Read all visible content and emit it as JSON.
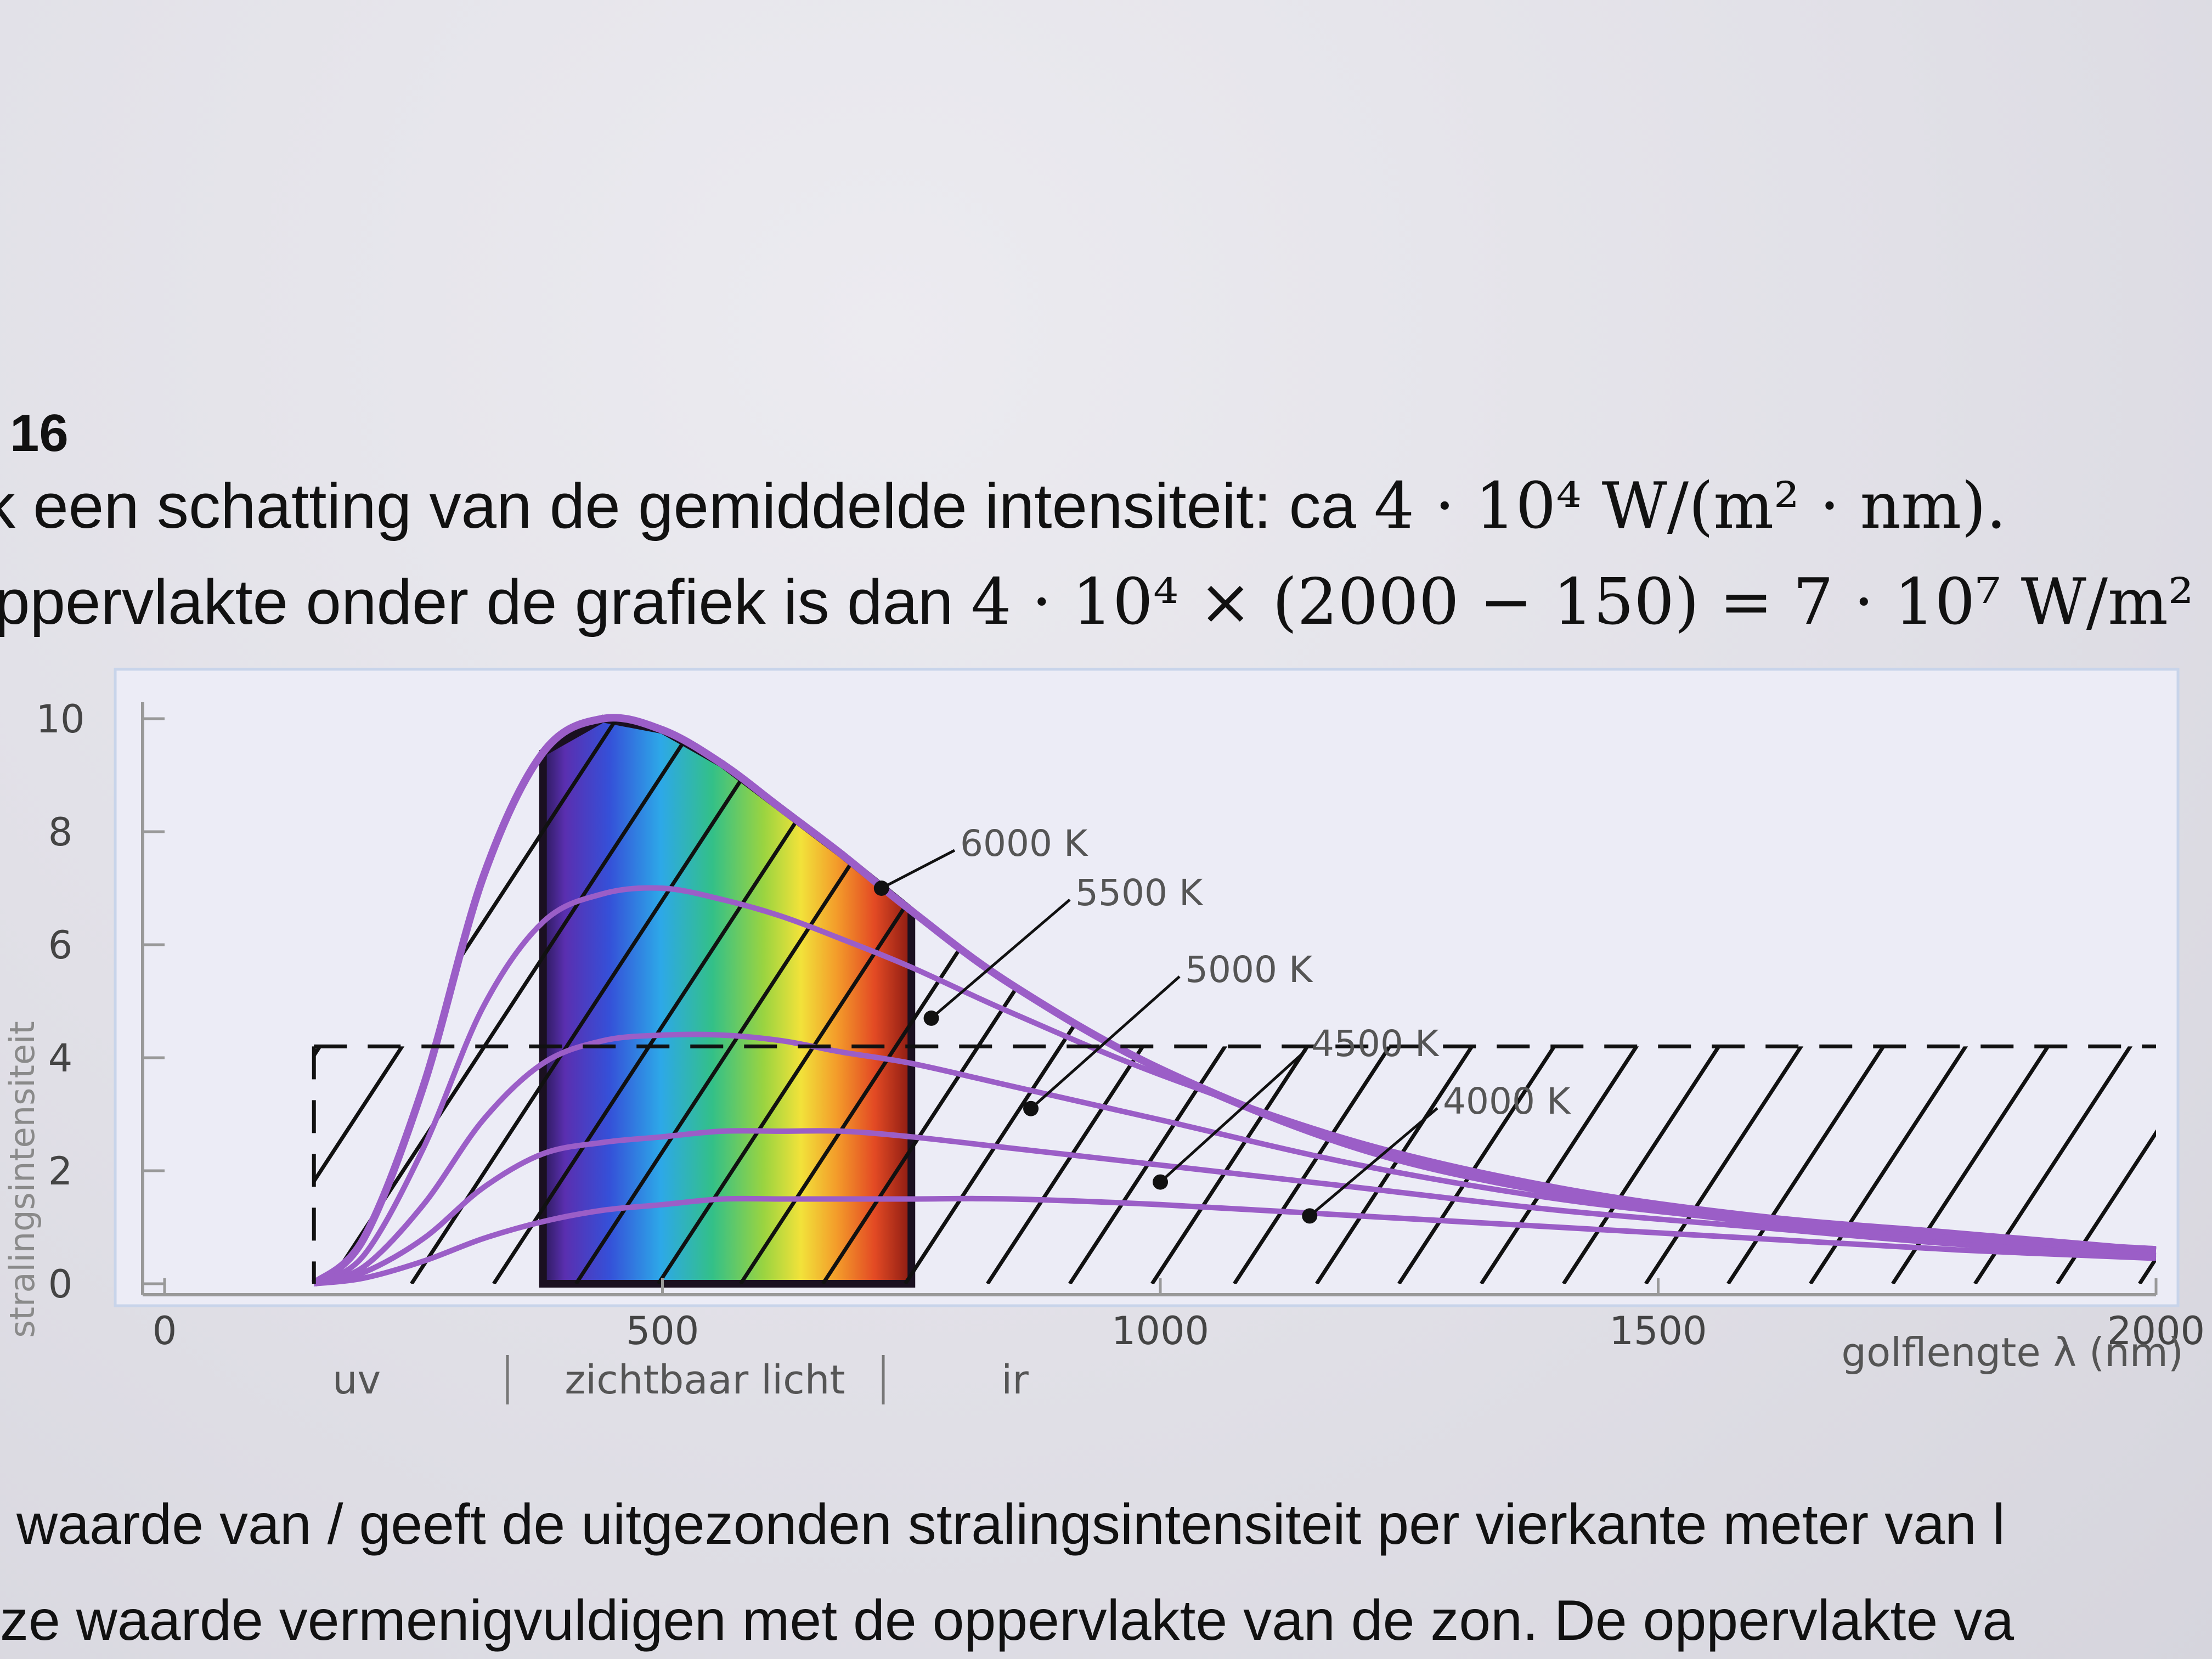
{
  "question_number": "16",
  "text": {
    "line1_prefix": "k een schatting van de gemiddelde intensiteit: ca",
    "line1_math": "4 · 10⁴ W/(m² · nm).",
    "line2_prefix": "ppervlakte onder de grafiek is dan",
    "line2_math": "4 · 10⁴ × (2000 − 150) = 7 · 10⁷ W/m²",
    "bottom_line1": "waarde van / geeft de uitgezonden stralingsintensiteit per vierkante meter van l",
    "bottom_line2": "ze waarde vermenigvuldigen met de oppervlakte van de zon. De oppervlakte va"
  },
  "chart_data": {
    "type": "line",
    "xlabel": "golflengte λ (nm)",
    "ylabel": "stralingsintensiteit",
    "xlim": [
      0,
      2000
    ],
    "ylim": [
      0,
      10
    ],
    "x_ticks": [
      "0",
      "500",
      "1000",
      "1500",
      "2000"
    ],
    "y_ticks": [
      "0",
      "2",
      "4",
      "6",
      "8",
      "10"
    ],
    "region_labels": [
      "uv",
      "zichtbaar licht",
      "ir"
    ],
    "visible_band_nm": [
      380,
      750
    ],
    "average_line": {
      "value": 4.2,
      "x_start": 150,
      "x_end": 2000
    },
    "series": [
      {
        "name": "6000 K",
        "x": [
          150,
          200,
          260,
          320,
          380,
          440,
          500,
          560,
          620,
          680,
          750,
          850,
          1000,
          1200,
          1400,
          1600,
          1800,
          2000
        ],
        "y": [
          0,
          0.8,
          3.5,
          7.2,
          9.4,
          10.0,
          9.8,
          9.2,
          8.4,
          7.6,
          6.6,
          5.3,
          3.8,
          2.4,
          1.6,
          1.1,
          0.8,
          0.6
        ]
      },
      {
        "name": "5500 K",
        "x": [
          150,
          200,
          260,
          320,
          380,
          440,
          500,
          560,
          620,
          680,
          750,
          850,
          1000,
          1200,
          1400,
          1600,
          1800,
          2000
        ],
        "y": [
          0,
          0.5,
          2.4,
          4.9,
          6.4,
          6.9,
          7.0,
          6.8,
          6.5,
          6.1,
          5.6,
          4.8,
          3.7,
          2.5,
          1.7,
          1.2,
          0.9,
          0.6
        ]
      },
      {
        "name": "5000 K",
        "x": [
          150,
          200,
          260,
          320,
          380,
          440,
          500,
          560,
          620,
          680,
          750,
          850,
          1000,
          1200,
          1400,
          1600,
          1800,
          2000
        ],
        "y": [
          0,
          0.3,
          1.4,
          2.9,
          3.9,
          4.3,
          4.4,
          4.4,
          4.3,
          4.1,
          3.9,
          3.5,
          2.9,
          2.1,
          1.5,
          1.1,
          0.8,
          0.6
        ]
      },
      {
        "name": "4500 K",
        "x": [
          150,
          200,
          260,
          320,
          380,
          440,
          500,
          560,
          620,
          680,
          750,
          850,
          1000,
          1200,
          1400,
          1600,
          1800,
          2000
        ],
        "y": [
          0,
          0.2,
          0.8,
          1.7,
          2.3,
          2.5,
          2.6,
          2.7,
          2.7,
          2.7,
          2.6,
          2.4,
          2.1,
          1.7,
          1.3,
          1.0,
          0.7,
          0.5
        ]
      },
      {
        "name": "4000 K",
        "x": [
          150,
          200,
          260,
          320,
          380,
          440,
          500,
          560,
          620,
          680,
          750,
          850,
          1000,
          1200,
          1400,
          1600,
          1800,
          2000
        ],
        "y": [
          0,
          0.1,
          0.4,
          0.8,
          1.1,
          1.3,
          1.4,
          1.5,
          1.5,
          1.5,
          1.5,
          1.5,
          1.4,
          1.2,
          1.0,
          0.8,
          0.6,
          0.45
        ]
      }
    ],
    "label_markers": [
      {
        "series": "6000 K",
        "x": 720,
        "y": 7.0
      },
      {
        "series": "5500 K",
        "x": 770,
        "y": 4.7
      },
      {
        "series": "5000 K",
        "x": 870,
        "y": 3.1
      },
      {
        "series": "4500 K",
        "x": 1000,
        "y": 1.8
      },
      {
        "series": "4000 K",
        "x": 1150,
        "y": 1.2
      }
    ],
    "colors": {
      "curve": "#9b5ec7",
      "hatch": "#111111",
      "average": "#111111",
      "panel": "#ececf6",
      "grid": "#c8d4ea",
      "axis_text": "#444444",
      "label_text": "#555555"
    }
  }
}
